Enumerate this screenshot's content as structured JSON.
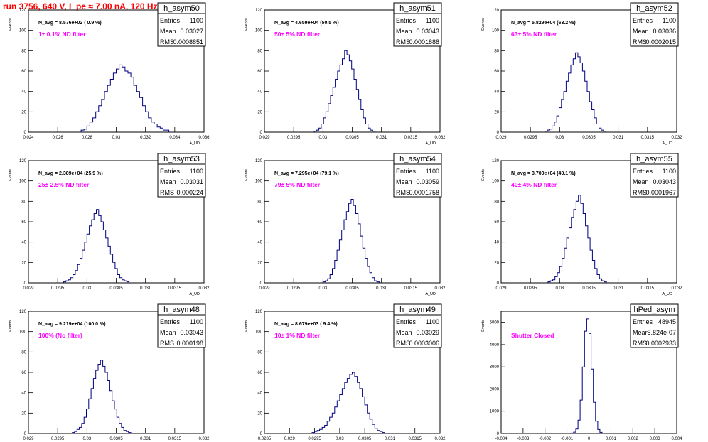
{
  "page_title": "run 3756,   640 V, I_pe ≈ 7.00 nA, 120 Hz",
  "colors": {
    "title": "#ff0000",
    "filter_label": "#ff00ff",
    "histogram_line": "#000080",
    "frame": "#000000"
  },
  "chart_data": [
    {
      "type": "bar",
      "name": "h_asym50",
      "xlabel": "A_UD",
      "ylabel": "Events",
      "xlim": [
        0.024,
        0.036
      ],
      "ylim": [
        0,
        120
      ],
      "x_ticks": [
        "0.024",
        "0.026",
        "0.028",
        "0.03",
        "0.032",
        "0.034",
        "0.036"
      ],
      "y_ticks": [
        "0",
        "20",
        "40",
        "60",
        "80",
        "100",
        "120"
      ],
      "navg_label": "N_avg = 8.576e+02 ( 0.9 %)",
      "filter_label": "1± 0.1% ND filter",
      "stats": {
        "entries_label": "Entries",
        "entries": "1100",
        "mean_label": "Mean",
        "mean": "0.03027",
        "rms_label": "RMS",
        "rms": "0.0008851"
      },
      "peak_x": 0.0303,
      "peak_value": 66,
      "bins": {
        "start": 0.0276,
        "width": 0.0002,
        "counts": [
          2,
          3,
          6,
          10,
          14,
          20,
          26,
          32,
          40,
          46,
          52,
          58,
          62,
          66,
          64,
          60,
          58,
          54,
          46,
          40,
          34,
          26,
          20,
          14,
          10,
          8,
          5,
          4,
          2,
          2
        ]
      }
    },
    {
      "type": "bar",
      "name": "h_asym51",
      "xlabel": "A_UD",
      "ylabel": "Events",
      "xlim": [
        0.029,
        0.032
      ],
      "ylim": [
        0,
        120
      ],
      "x_ticks": [
        "0.029",
        "0.0295",
        "0.03",
        "0.0305",
        "0.031",
        "0.0315",
        "0.032"
      ],
      "y_ticks": [
        "0",
        "20",
        "40",
        "60",
        "80",
        "100",
        "120"
      ],
      "navg_label": "N_avg = 4.659e+04 (50.5 %)",
      "filter_label": "50± 5% ND filter",
      "stats": {
        "entries_label": "Entries",
        "entries": "1100",
        "mean_label": "Mean",
        "mean": "0.03043",
        "rms_label": "RMS",
        "rms": "0.0001888"
      },
      "peak_x": 0.03048,
      "peak_value": 80,
      "bins": {
        "start": 0.02985,
        "width": 4e-05,
        "counts": [
          1,
          2,
          4,
          8,
          14,
          20,
          28,
          36,
          44,
          52,
          60,
          66,
          72,
          80,
          76,
          70,
          62,
          52,
          42,
          32,
          22,
          14,
          8,
          4,
          2,
          1
        ]
      }
    },
    {
      "type": "bar",
      "name": "h_asym52",
      "xlabel": "A_UD",
      "ylabel": "Events",
      "xlim": [
        0.029,
        0.032
      ],
      "ylim": [
        0,
        120
      ],
      "x_ticks": [
        "0.029",
        "0.0295",
        "0.03",
        "0.0305",
        "0.031",
        "0.0315",
        "0.032"
      ],
      "y_ticks": [
        "0",
        "20",
        "40",
        "60",
        "80",
        "100",
        "120"
      ],
      "navg_label": "N_avg = 5.829e+04 (63.2 %)",
      "filter_label": "63± 5% ND filter",
      "stats": {
        "entries_label": "Entries",
        "entries": "1100",
        "mean_label": "Mean",
        "mean": "0.03036",
        "rms_label": "RMS",
        "rms": "0.0002015"
      },
      "peak_x": 0.03039,
      "peak_value": 78,
      "bins": {
        "start": 0.02975,
        "width": 4e-05,
        "counts": [
          1,
          2,
          3,
          6,
          10,
          16,
          24,
          32,
          40,
          50,
          58,
          66,
          72,
          78,
          74,
          68,
          60,
          50,
          40,
          30,
          22,
          14,
          8,
          4,
          2,
          1
        ]
      }
    },
    {
      "type": "bar",
      "name": "h_asym53",
      "xlabel": "A_UD",
      "ylabel": "Events",
      "xlim": [
        0.029,
        0.032
      ],
      "ylim": [
        0,
        120
      ],
      "x_ticks": [
        "0.029",
        "0.0295",
        "0.03",
        "0.0305",
        "0.031",
        "0.0315",
        "0.032"
      ],
      "y_ticks": [
        "0",
        "20",
        "40",
        "60",
        "80",
        "100",
        "120"
      ],
      "navg_label": "N_avg = 2.389e+04 (25.9 %)",
      "filter_label": "25± 2.5% ND filter",
      "stats": {
        "entries_label": "Entries",
        "entries": "1100",
        "mean_label": "Mean",
        "mean": "0.03031",
        "rms_label": "RMS",
        "rms": "0.000224"
      },
      "peak_x": 0.03035,
      "peak_value": 72,
      "bins": {
        "start": 0.0296,
        "width": 4e-05,
        "counts": [
          1,
          2,
          3,
          5,
          8,
          12,
          18,
          24,
          32,
          40,
          48,
          56,
          62,
          68,
          72,
          66,
          60,
          52,
          44,
          36,
          28,
          20,
          14,
          8,
          5,
          3,
          2,
          1
        ]
      }
    },
    {
      "type": "bar",
      "name": "h_asym54",
      "xlabel": "A_UD",
      "ylabel": "Events",
      "xlim": [
        0.029,
        0.032
      ],
      "ylim": [
        0,
        120
      ],
      "x_ticks": [
        "0.029",
        "0.0295",
        "0.03",
        "0.0305",
        "0.031",
        "0.0315",
        "0.032"
      ],
      "y_ticks": [
        "0",
        "20",
        "40",
        "60",
        "80",
        "100",
        "120"
      ],
      "navg_label": "N_avg = 7.295e+04 (79.1 %)",
      "filter_label": "79± 5% ND filter",
      "stats": {
        "entries_label": "Entries",
        "entries": "1100",
        "mean_label": "Mean",
        "mean": "0.03059",
        "rms_label": "RMS",
        "rms": "0.0001758"
      },
      "peak_x": 0.03055,
      "peak_value": 82,
      "bins": {
        "start": 0.03,
        "width": 4e-05,
        "counts": [
          1,
          2,
          4,
          8,
          14,
          22,
          32,
          42,
          52,
          62,
          70,
          78,
          82,
          76,
          68,
          58,
          46,
          34,
          24,
          16,
          10,
          5,
          2,
          1
        ]
      }
    },
    {
      "type": "bar",
      "name": "h_asym55",
      "xlabel": "A_UD",
      "ylabel": "Events",
      "xlim": [
        0.029,
        0.032
      ],
      "ylim": [
        0,
        120
      ],
      "x_ticks": [
        "0.029",
        "0.0295",
        "0.03",
        "0.0305",
        "0.031",
        "0.0315",
        "0.032"
      ],
      "y_ticks": [
        "0",
        "20",
        "40",
        "60",
        "80",
        "100",
        "120"
      ],
      "navg_label": "N_avg = 3.700e+04 (40.1 %)",
      "filter_label": "40± 4% ND filter",
      "stats": {
        "entries_label": "Entries",
        "entries": "1100",
        "mean_label": "Mean",
        "mean": "0.03043",
        "rms_label": "RMS",
        "rms": "0.0001967"
      },
      "peak_x": 0.03047,
      "peak_value": 86,
      "bins": {
        "start": 0.0298,
        "width": 4e-05,
        "counts": [
          1,
          2,
          3,
          6,
          10,
          16,
          24,
          34,
          44,
          54,
          64,
          72,
          80,
          86,
          78,
          68,
          56,
          44,
          32,
          22,
          14,
          8,
          4,
          2,
          1
        ]
      }
    },
    {
      "type": "bar",
      "name": "h_asym48",
      "xlabel": "A_UD",
      "ylabel": "Events",
      "xlim": [
        0.029,
        0.032
      ],
      "ylim": [
        0,
        120
      ],
      "x_ticks": [
        "0.029",
        "0.0295",
        "0.03",
        "0.0305",
        "0.031",
        "0.0315",
        "0.032"
      ],
      "y_ticks": [
        "0",
        "20",
        "40",
        "60",
        "80",
        "100",
        "120"
      ],
      "navg_label": "N_avg = 9.219e+04 (100.0 %)",
      "filter_label": "100% (No filter)",
      "stats": {
        "entries_label": "Entries",
        "entries": "1100",
        "mean_label": "Mean",
        "mean": "0.03043",
        "rms_label": "RMS",
        "rms": "0.000198"
      },
      "peak_x": 0.03042,
      "peak_value": 72,
      "bins": {
        "start": 0.02975,
        "width": 4e-05,
        "counts": [
          1,
          2,
          4,
          6,
          10,
          16,
          24,
          34,
          44,
          54,
          62,
          68,
          72,
          66,
          60,
          52,
          42,
          32,
          24,
          16,
          10,
          6,
          3,
          2,
          1
        ]
      }
    },
    {
      "type": "bar",
      "name": "h_asym49",
      "xlabel": "A_UD",
      "ylabel": "Events",
      "xlim": [
        0.0285,
        0.032
      ],
      "ylim": [
        0,
        120
      ],
      "x_ticks": [
        "0.0285",
        "0.029",
        "0.0295",
        "0.03",
        "0.0305",
        "0.031",
        "0.0315",
        "0.032"
      ],
      "y_ticks": [
        "0",
        "20",
        "40",
        "60",
        "80",
        "100",
        "120"
      ],
      "navg_label": "N_avg = 8.679e+03 ( 9.4 %)",
      "filter_label": "10± 1% ND filter",
      "stats": {
        "entries_label": "Entries",
        "entries": "1100",
        "mean_label": "Mean",
        "mean": "0.03029",
        "rms_label": "RMS",
        "rms": "0.0003006"
      },
      "peak_x": 0.03033,
      "peak_value": 60,
      "bins": {
        "start": 0.02945,
        "width": 5e-05,
        "counts": [
          1,
          2,
          3,
          4,
          6,
          8,
          12,
          16,
          20,
          26,
          32,
          38,
          44,
          50,
          54,
          58,
          60,
          56,
          50,
          44,
          36,
          28,
          20,
          14,
          9,
          5,
          3,
          2,
          1
        ]
      }
    },
    {
      "type": "bar",
      "name": "hPed_asym",
      "xlabel": "A_UD",
      "ylabel": "Events",
      "xlim": [
        -0.004,
        0.004
      ],
      "ylim": [
        0,
        5500
      ],
      "x_ticks": [
        "-0.004",
        "-0.003",
        "-0.002",
        "-0.001",
        "0",
        "0.001",
        "0.002",
        "0.003",
        "0.004"
      ],
      "y_ticks": [
        "0",
        "1000",
        "2000",
        "3000",
        "4000",
        "5000"
      ],
      "navg_label": "",
      "filter_label": "Shutter Closed",
      "stats": {
        "entries_label": "Entries",
        "entries": "48945",
        "mean_label": "Mean",
        "mean": "-5.824e-07",
        "rms_label": "RMS",
        "rms": "0.0002933"
      },
      "peak_x": 0.0,
      "peak_value": 5150,
      "bins": {
        "start": -0.0008,
        "width": 0.0001,
        "counts": [
          20,
          60,
          200,
          600,
          1500,
          3000,
          4600,
          5150,
          4500,
          2900,
          1400,
          550,
          180,
          50,
          15
        ]
      }
    }
  ]
}
